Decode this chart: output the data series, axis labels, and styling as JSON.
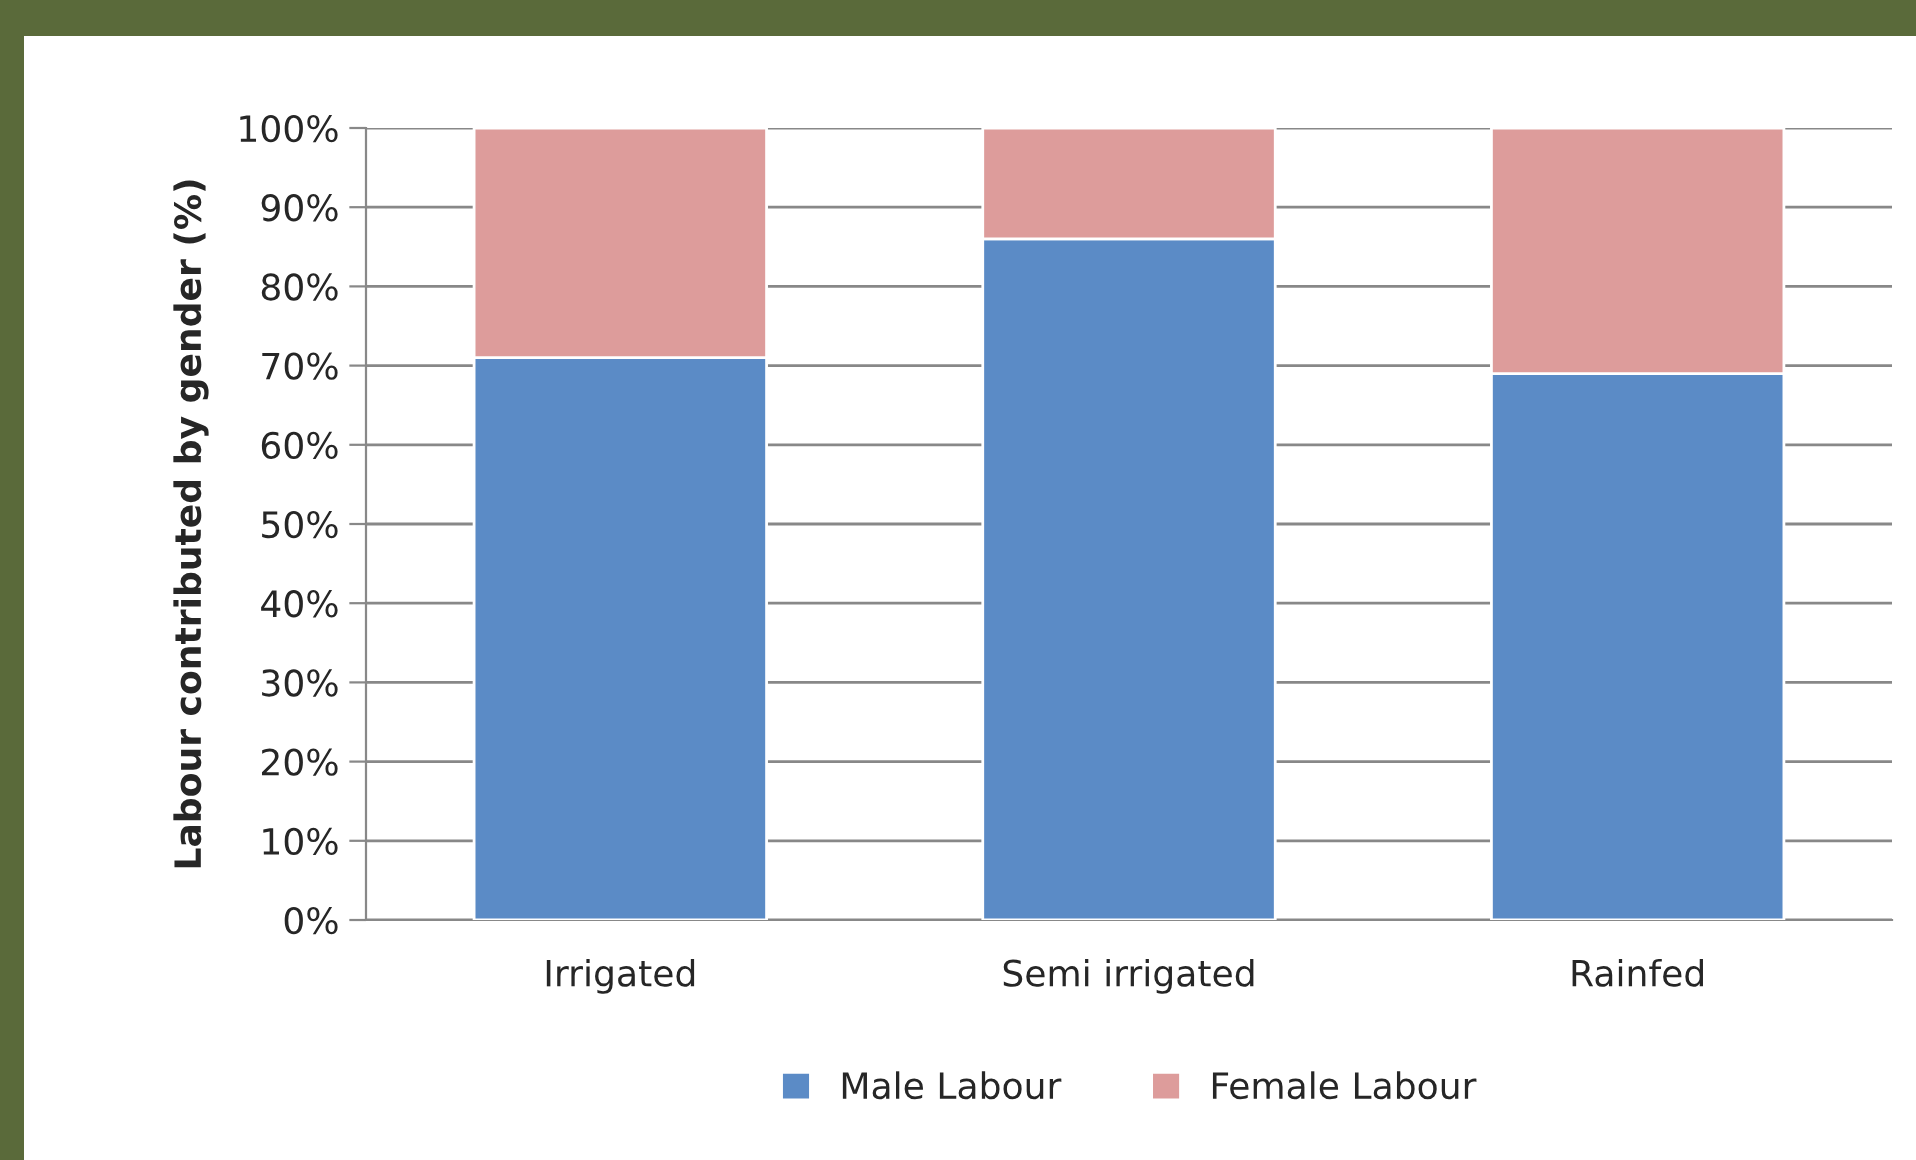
{
  "chart_data": {
    "type": "bar",
    "stacked": true,
    "ylabel": "Labour contributed by gender (%)",
    "categories": [
      "Irrigated",
      "Semi irrigated",
      "Rainfed"
    ],
    "series": [
      {
        "name": "Male Labour",
        "color": "#5b8bc6",
        "values": [
          71,
          86,
          69
        ]
      },
      {
        "name": "Female Labour",
        "color": "#dd9c9b",
        "values": [
          29,
          14,
          31
        ]
      }
    ],
    "ylim": [
      0,
      100
    ],
    "yticks": [
      {
        "value": 0,
        "label": "0%"
      },
      {
        "value": 10,
        "label": "10%"
      },
      {
        "value": 20,
        "label": "20%"
      },
      {
        "value": 30,
        "label": "30%"
      },
      {
        "value": 40,
        "label": "40%"
      },
      {
        "value": 50,
        "label": "50%"
      },
      {
        "value": 60,
        "label": "60%"
      },
      {
        "value": 70,
        "label": "70%"
      },
      {
        "value": 80,
        "label": "80%"
      },
      {
        "value": 90,
        "label": "90%"
      },
      {
        "value": 100,
        "label": "100%"
      }
    ],
    "grid": "y",
    "legend": "bottom"
  }
}
